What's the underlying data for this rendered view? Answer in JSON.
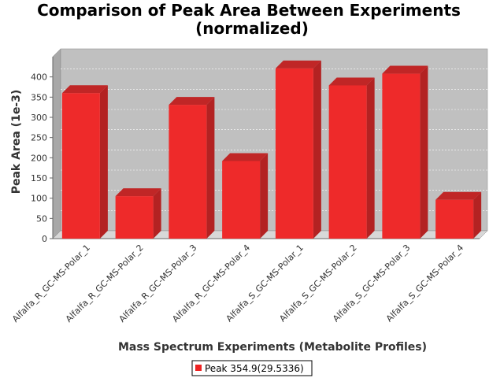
{
  "chart_data": {
    "type": "bar",
    "title": "Comparison of Peak Area Between Experiments",
    "subtitle": "(normalized)",
    "xlabel": "Mass Spectrum Experiments (Metabolite Profiles)",
    "ylabel": "Peak Area (1e-3)",
    "ylim": [
      0,
      450
    ],
    "yticks": [
      0,
      50,
      100,
      150,
      200,
      250,
      300,
      350,
      400
    ],
    "grid": true,
    "legend_placement": "bottom",
    "categories": [
      "Alfalfa_R_GC-MS-Polar_1",
      "Alfalfa_R_GC-MS-Polar_2",
      "Alfalfa_R_GC-MS-Polar_3",
      "Alfalfa_R_GC-MS-Polar_4",
      "Alfalfa_S_GC-MS-Polar_1",
      "Alfalfa_S_GC-MS-Polar_2",
      "Alfalfa_S_GC-MS-Polar_3",
      "Alfalfa_S_GC-MS-Polar_4"
    ],
    "series": [
      {
        "name": "Peak 354.9(29.5336)",
        "color": "#ee2222",
        "values": [
          360,
          105,
          331,
          192,
          421,
          379,
          408,
          96
        ]
      }
    ]
  },
  "colors": {
    "plot_background": "#c0c0c0",
    "plot_side": "#a8a8a8",
    "plot_floor": "#d8d8d8",
    "bar_front": "#ee2a2a",
    "bar_side": "#b32222",
    "bar_top": "#c02626"
  }
}
